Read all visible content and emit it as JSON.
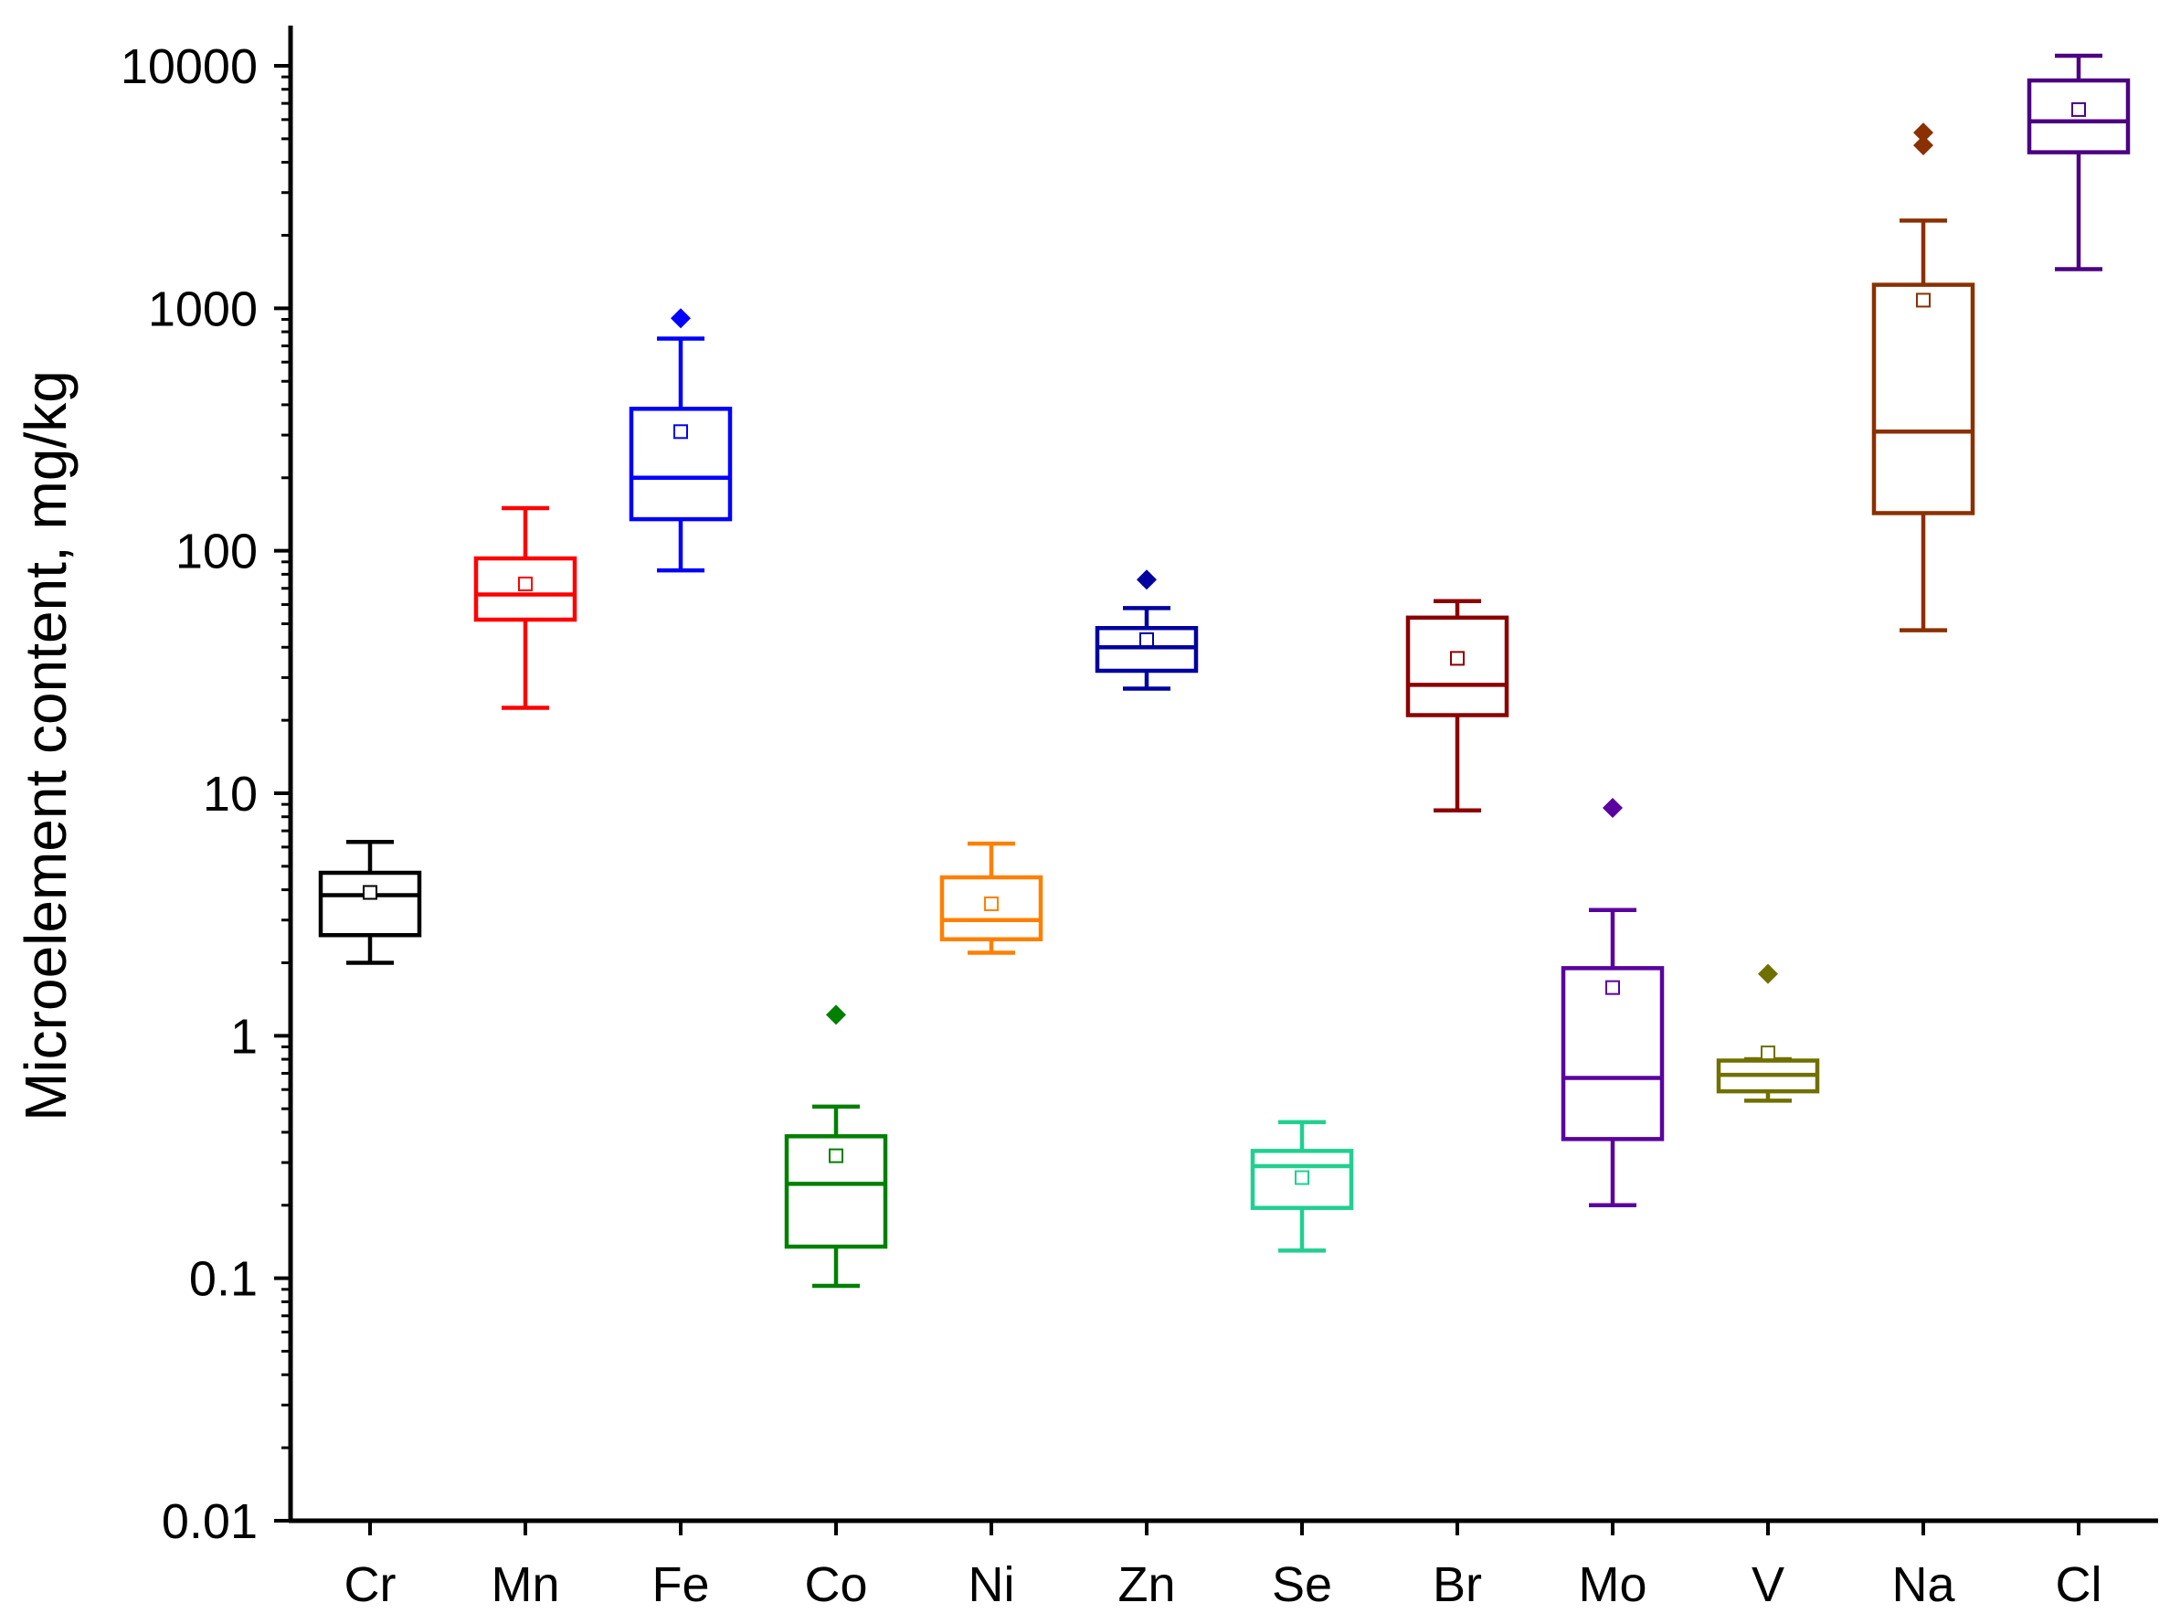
{
  "chart_data": {
    "type": "box",
    "title": "",
    "xlabel": "",
    "ylabel": "Microelement content, mg/kg",
    "yscale": "log",
    "ylim": [
      0.01,
      15000
    ],
    "yticks": [
      {
        "value": 0.01,
        "label": "0.01"
      },
      {
        "value": 0.1,
        "label": "0.1"
      },
      {
        "value": 1,
        "label": "1"
      },
      {
        "value": 10,
        "label": "10"
      },
      {
        "value": 100,
        "label": "100"
      },
      {
        "value": 1000,
        "label": "1000"
      },
      {
        "value": 10000,
        "label": "10000"
      }
    ],
    "categories": [
      "Cr",
      "Mn",
      "Fe",
      "Co",
      "Ni",
      "Zn",
      "Se",
      "Br",
      "Mo",
      "V",
      "Na",
      "Cl"
    ],
    "boxes": [
      {
        "name": "Cr",
        "color": "#000000",
        "whisker_low": 2.0,
        "q1": 2.6,
        "median": 3.8,
        "q3": 4.7,
        "whisker_high": 6.3,
        "mean": 3.9,
        "outliers": []
      },
      {
        "name": "Mn",
        "color": "#ff0000",
        "whisker_low": 22.5,
        "q1": 52,
        "median": 66,
        "q3": 93,
        "whisker_high": 150,
        "mean": 73,
        "outliers": []
      },
      {
        "name": "Fe",
        "color": "#0000ff",
        "whisker_low": 83,
        "q1": 135,
        "median": 200,
        "q3": 385,
        "whisker_high": 750,
        "mean": 310,
        "outliers": [
          910
        ]
      },
      {
        "name": "Co",
        "color": "#008000",
        "whisker_low": 0.093,
        "q1": 0.135,
        "median": 0.245,
        "q3": 0.385,
        "whisker_high": 0.51,
        "mean": 0.32,
        "outliers": [
          1.22
        ]
      },
      {
        "name": "Ni",
        "color": "#ff8000",
        "whisker_low": 2.2,
        "q1": 2.5,
        "median": 3.0,
        "q3": 4.5,
        "whisker_high": 6.2,
        "mean": 3.5,
        "outliers": []
      },
      {
        "name": "Zn",
        "color": "#0000a0",
        "whisker_low": 27,
        "q1": 32,
        "median": 40,
        "q3": 48,
        "whisker_high": 58,
        "mean": 43,
        "outliers": [
          76
        ]
      },
      {
        "name": "Se",
        "color": "#20d090",
        "whisker_low": 0.13,
        "q1": 0.195,
        "median": 0.29,
        "q3": 0.335,
        "whisker_high": 0.44,
        "mean": 0.26,
        "outliers": []
      },
      {
        "name": "Br",
        "color": "#8b0000",
        "whisker_low": 8.5,
        "q1": 21,
        "median": 28,
        "q3": 53,
        "whisker_high": 62,
        "mean": 36,
        "outliers": []
      },
      {
        "name": "Mo",
        "color": "#5a00a0",
        "whisker_low": 0.2,
        "q1": 0.375,
        "median": 0.67,
        "q3": 1.9,
        "whisker_high": 3.3,
        "mean": 1.58,
        "outliers": [
          8.7
        ]
      },
      {
        "name": "V",
        "color": "#707000",
        "whisker_low": 0.54,
        "q1": 0.59,
        "median": 0.69,
        "q3": 0.79,
        "whisker_high": 0.8,
        "mean": 0.85,
        "outliers": [
          1.8
        ]
      },
      {
        "name": "Na",
        "color": "#8b3000",
        "whisker_low": 47,
        "q1": 143,
        "median": 310,
        "q3": 1250,
        "whisker_high": 2300,
        "mean": 1080,
        "outliers": [
          4700,
          5300
        ]
      },
      {
        "name": "Cl",
        "color": "#4b0082",
        "whisker_low": 1450,
        "q1": 4400,
        "median": 5900,
        "q3": 8700,
        "whisker_high": 11000,
        "mean": 6600,
        "outliers": []
      }
    ]
  }
}
